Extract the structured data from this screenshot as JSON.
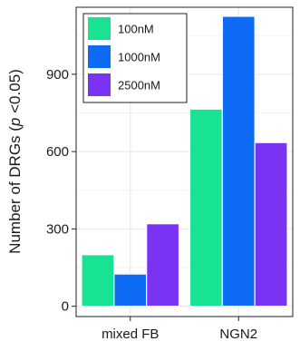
{
  "chart_data": {
    "type": "bar",
    "categories": [
      "mixed FB",
      "NGN2"
    ],
    "series": [
      {
        "name": "100nM",
        "values": [
          200,
          765
        ],
        "color": "#17e393"
      },
      {
        "name": "1000nM",
        "values": [
          125,
          1125
        ],
        "color": "#0e6bf6"
      },
      {
        "name": "2500nM",
        "values": [
          320,
          635
        ],
        "color": "#7a33f3"
      }
    ],
    "ylabel_prefix": "Number of DRGs (",
    "ylabel_italic": "p",
    "ylabel_suffix": " <0.05)",
    "xlabel": "",
    "ylim": [
      -40,
      1160
    ],
    "yticks": [
      0,
      300,
      600,
      900
    ],
    "grid": true,
    "legend": "top-left"
  }
}
